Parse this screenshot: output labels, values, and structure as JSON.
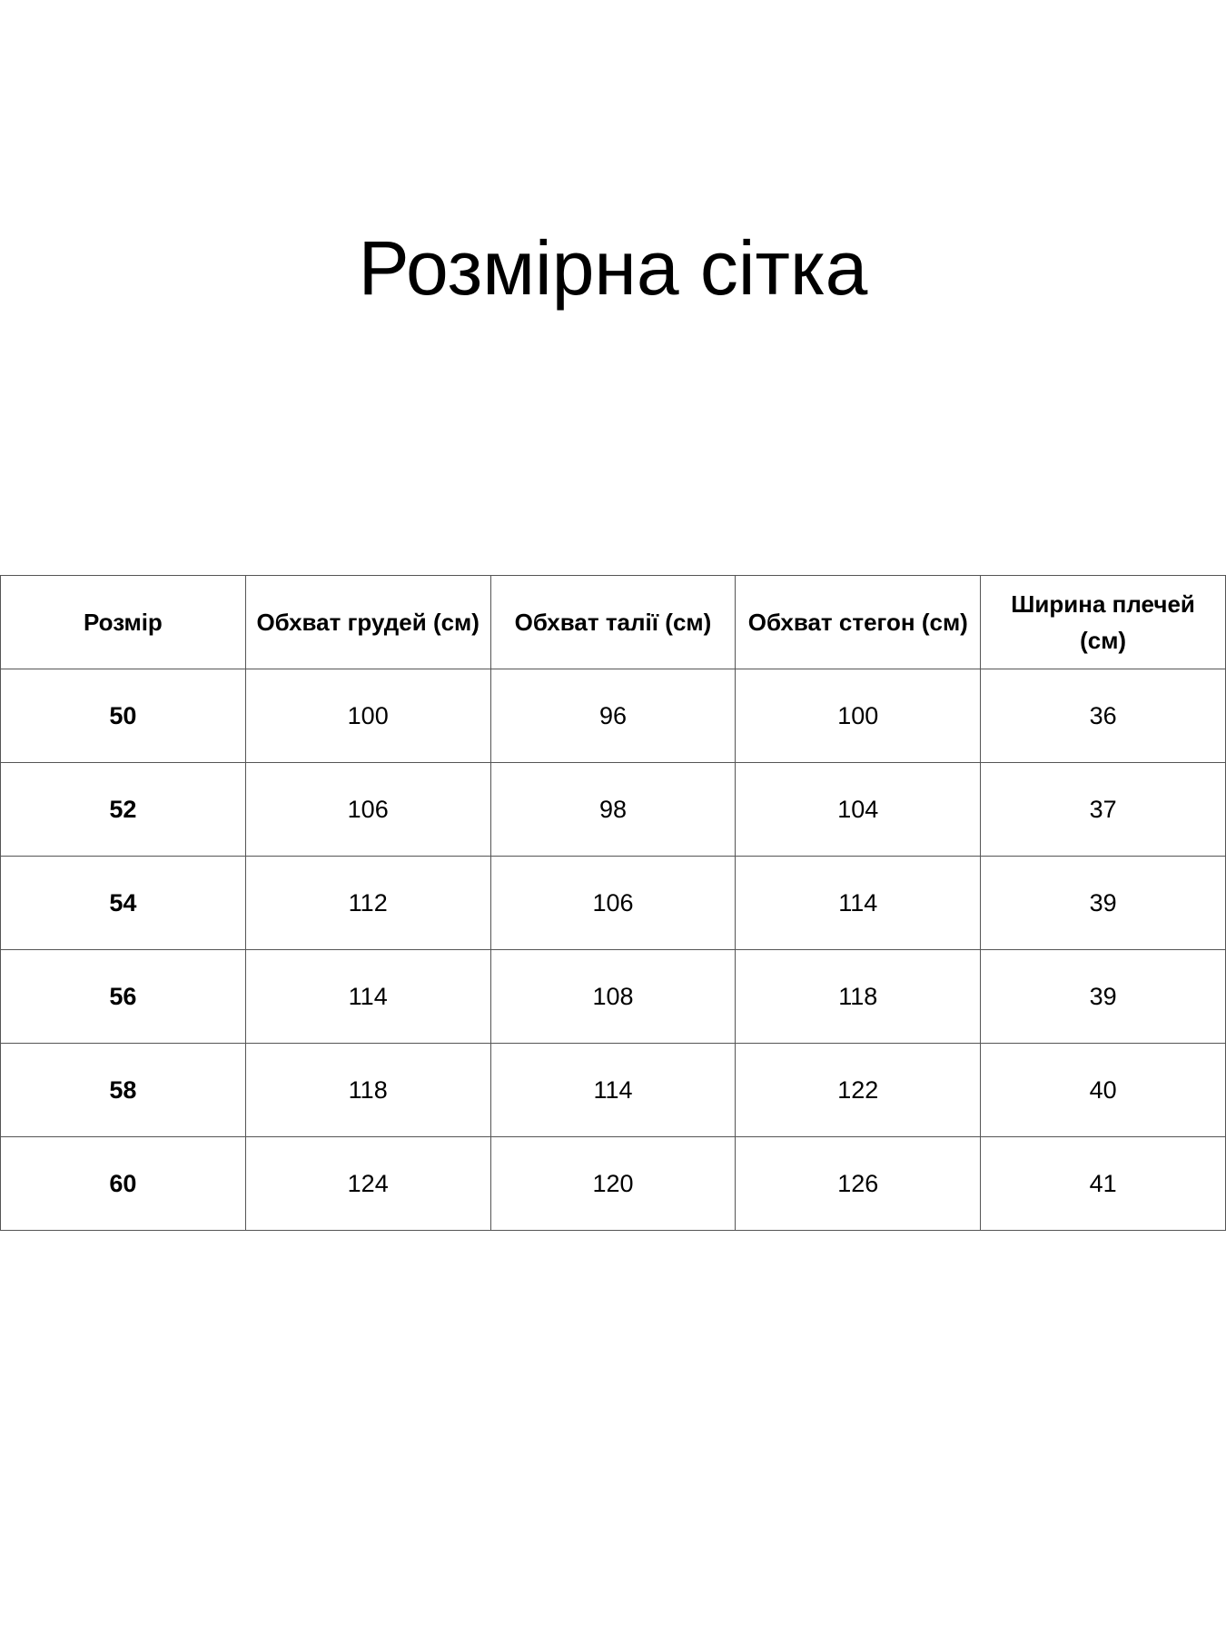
{
  "title": "Розмірна сітка",
  "table": {
    "headers": [
      "Розмір",
      "Обхват грудей (см)",
      "Обхват талії (см)",
      "Обхват стегон (см)",
      "Ширина плечей (см)"
    ],
    "rows": [
      [
        "50",
        "100",
        "96",
        "100",
        "36"
      ],
      [
        "52",
        "106",
        "98",
        "104",
        "37"
      ],
      [
        "54",
        "112",
        "106",
        "114",
        "39"
      ],
      [
        "56",
        "114",
        "108",
        "118",
        "39"
      ],
      [
        "58",
        "118",
        "114",
        "122",
        "40"
      ],
      [
        "60",
        "124",
        "120",
        "126",
        "41"
      ]
    ]
  }
}
